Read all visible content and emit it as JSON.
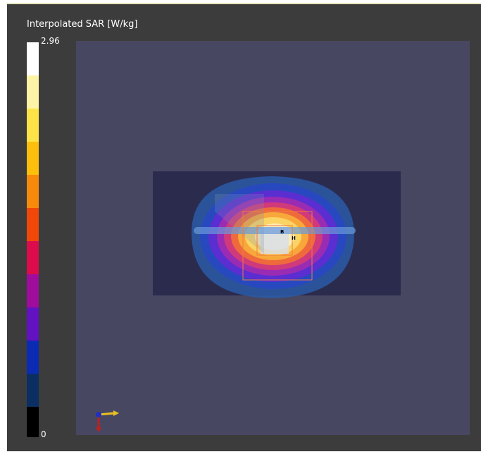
{
  "legend": {
    "title": "Interpolated SAR [W/kg]",
    "max": 2.96,
    "min": 0
  },
  "markers": [
    "B",
    "H"
  ]
}
